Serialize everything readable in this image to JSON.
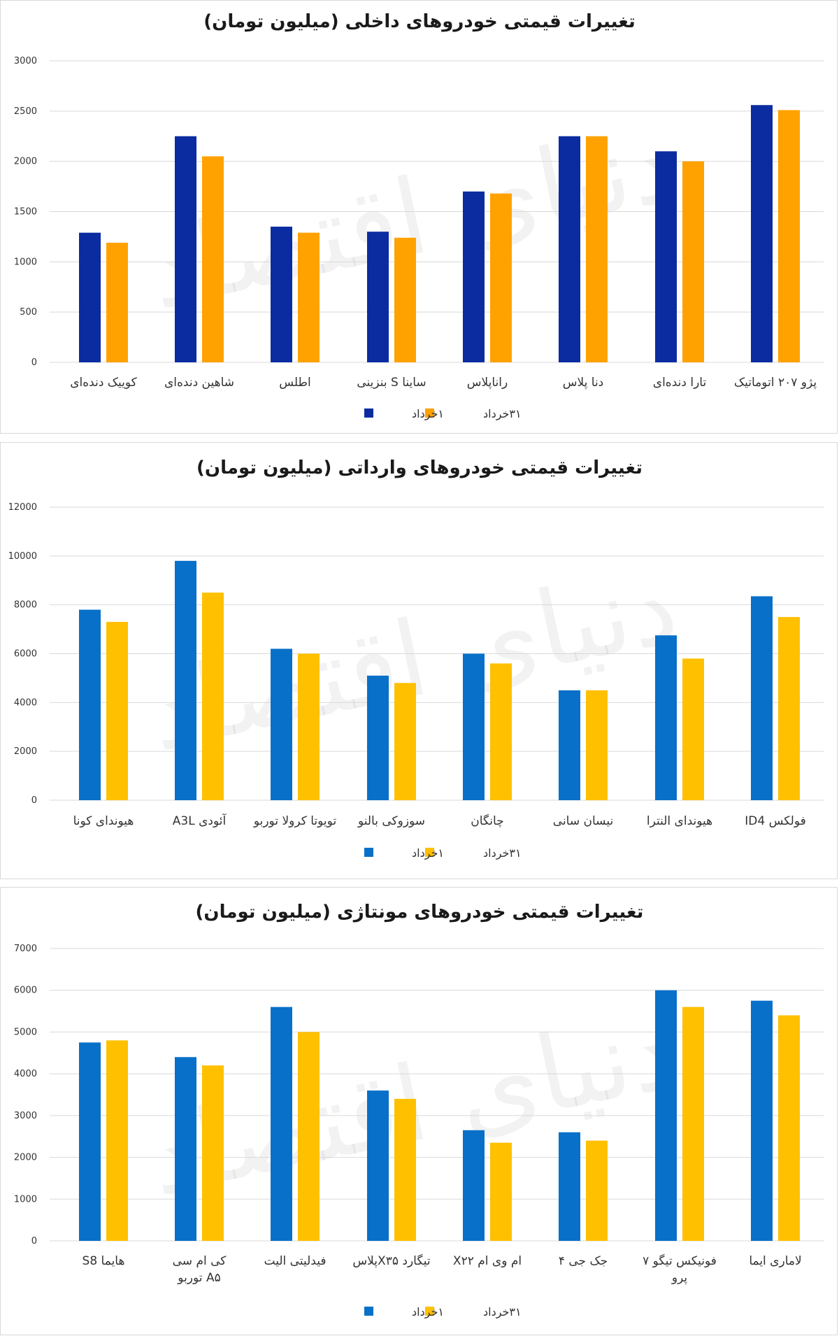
{
  "chart_data": [
    {
      "type": "bar",
      "title": "تغییرات قیمتی خودروهای داخلی (میلیون تومان)",
      "categories": [
        "پژو ۲۰۷ اتوماتیک",
        "تارا دنده‌ای",
        "دنا پلاس",
        "راناپلاس",
        "ساینا S بنزینی",
        "اطلس",
        "شاهین دنده‌ای",
        "کوییک دنده‌ای"
      ],
      "series": [
        {
          "name": "۱خرداد",
          "color": "#0a2ca0",
          "values": [
            2560,
            2100,
            2250,
            1700,
            1300,
            1350,
            2250,
            1290
          ]
        },
        {
          "name": "۳۱خرداد",
          "color": "#ffa200",
          "values": [
            2510,
            2000,
            2250,
            1680,
            1240,
            1290,
            2050,
            1190
          ]
        }
      ],
      "y_ticks": [
        "3000",
        "2500",
        "2000",
        "1500",
        "1000",
        "500",
        "0"
      ],
      "ylim": [
        0,
        3000
      ],
      "grid": true,
      "legend": "bottom"
    },
    {
      "type": "bar",
      "title": "تغییرات قیمتی خودروهای وارداتی (میلیون تومان)",
      "categories": [
        "فولکس ID4",
        "هیوندای النترا",
        "نیسان سانی",
        "چانگان",
        "سوزوکی بالنو",
        "تویوتا کرولا توربو",
        "آئودی A3L",
        "هیوندای کونا"
      ],
      "series": [
        {
          "name": "۱خرداد",
          "color": "#0870c8",
          "values": [
            8350,
            6750,
            4500,
            6000,
            5100,
            6200,
            9800,
            7800
          ]
        },
        {
          "name": "۳۱خرداد",
          "color": "#ffc000",
          "values": [
            7500,
            5800,
            4500,
            5600,
            4800,
            6000,
            8500,
            7300
          ]
        }
      ],
      "y_ticks": [
        "12000",
        "10000",
        "8000",
        "6000",
        "4000",
        "2000",
        "0"
      ],
      "ylim": [
        0,
        12000
      ],
      "grid": true,
      "legend": "bottom"
    },
    {
      "type": "bar",
      "title": "تغییرات قیمتی خودروهای مونتاژی (میلیون تومان)",
      "categories": [
        "لاماری ایما",
        "فونیکس تیگو ۷ پرو",
        "جک جی ۴",
        "ام وی ام X۲۲",
        "تیگارد X۳۵پلاس",
        "فیدلیتی الیت",
        "کی ام سی A۵ توربو",
        "هایما S8"
      ],
      "series": [
        {
          "name": "۱خرداد",
          "color": "#0870c8",
          "values": [
            5750,
            6000,
            2600,
            2650,
            3600,
            5600,
            4400,
            4750
          ]
        },
        {
          "name": "۳۱خرداد",
          "color": "#ffc000",
          "values": [
            5400,
            5600,
            2400,
            2350,
            3400,
            5000,
            4200,
            4800
          ]
        }
      ],
      "y_ticks": [
        "7000",
        "6000",
        "5000",
        "4000",
        "3000",
        "2000",
        "1000",
        "0"
      ],
      "ylim": [
        0,
        7000
      ],
      "grid": true,
      "legend": "bottom"
    }
  ],
  "watermark": "دنیای اقتصاد"
}
